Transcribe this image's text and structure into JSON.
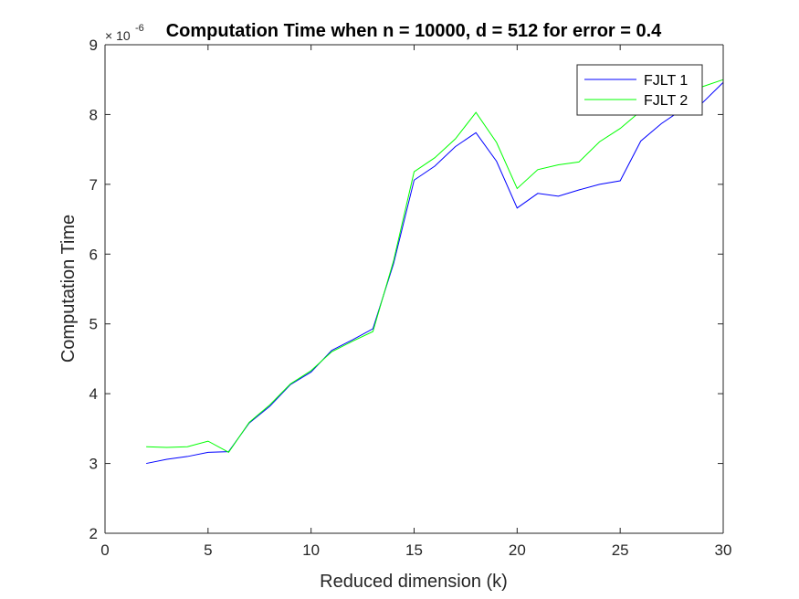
{
  "chart_data": {
    "type": "line",
    "title": "Computation Time when n = 10000, d = 512 for error = 0.4",
    "xlabel": "Reduced dimension (k)",
    "ylabel": "Computation Time",
    "xlim": [
      0,
      30
    ],
    "ylim": [
      2,
      9
    ],
    "y_exponent_base": "× 10",
    "y_exponent": "-6",
    "xticks": [
      0,
      5,
      10,
      15,
      20,
      25,
      30
    ],
    "yticks": [
      2,
      3,
      4,
      5,
      6,
      7,
      8,
      9
    ],
    "grid": false,
    "legend_position": "top-right",
    "x": [
      2,
      3,
      4,
      5,
      6,
      7,
      8,
      9,
      10,
      11,
      12,
      13,
      14,
      15,
      16,
      17,
      18,
      19,
      20,
      21,
      22,
      23,
      24,
      25,
      26,
      27,
      28,
      29,
      30
    ],
    "series": [
      {
        "name": "FJLT 1",
        "color": "#0000ff",
        "values": [
          3.0,
          3.06,
          3.1,
          3.16,
          3.17,
          3.58,
          3.82,
          4.13,
          4.31,
          4.62,
          4.77,
          4.93,
          5.86,
          7.06,
          7.26,
          7.54,
          7.74,
          7.33,
          6.66,
          6.87,
          6.83,
          6.92,
          7.0,
          7.05,
          7.62,
          7.87,
          8.07,
          8.17,
          8.46
        ]
      },
      {
        "name": "FJLT 2",
        "color": "#00ff00",
        "values": [
          3.24,
          3.23,
          3.24,
          3.32,
          3.16,
          3.59,
          3.84,
          4.14,
          4.33,
          4.6,
          4.75,
          4.89,
          5.9,
          7.18,
          7.38,
          7.65,
          8.03,
          7.6,
          6.94,
          7.21,
          7.28,
          7.32,
          7.61,
          7.8,
          8.05,
          8.2,
          8.3,
          8.4,
          8.5
        ]
      }
    ]
  }
}
